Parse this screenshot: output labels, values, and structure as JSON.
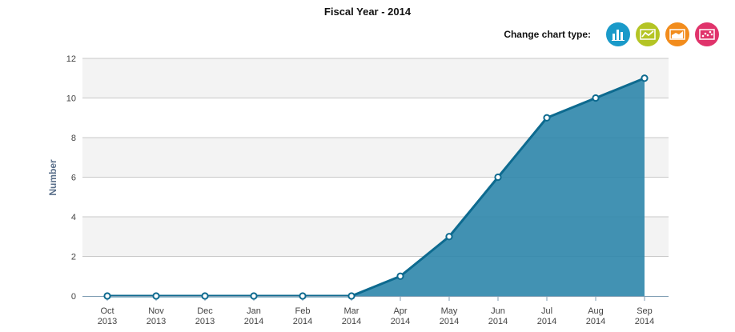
{
  "title": "Fiscal Year - 2014",
  "chart_type_selector": {
    "label": "Change chart type:",
    "buttons": [
      {
        "name": "bar",
        "icon": "bar-chart-icon",
        "color": "#1a9ac9"
      },
      {
        "name": "line",
        "icon": "line-chart-icon",
        "color": "#b4c424"
      },
      {
        "name": "area",
        "icon": "area-chart-icon",
        "color": "#f28c1c"
      },
      {
        "name": "scatter",
        "icon": "scatter-chart-icon",
        "color": "#e0336b"
      }
    ]
  },
  "chart_data": {
    "type": "area",
    "title": "Fiscal Year - 2014",
    "xlabel": "",
    "ylabel": "Number",
    "categories": [
      "Oct 2013",
      "Nov 2013",
      "Dec 2013",
      "Jan 2014",
      "Feb 2014",
      "Mar 2014",
      "Apr 2014",
      "May 2014",
      "Jun 2014",
      "Jul 2014",
      "Aug 2014",
      "Sep 2014"
    ],
    "values": [
      0,
      0,
      0,
      0,
      0,
      0,
      1,
      3,
      6,
      9,
      10,
      11
    ],
    "ylim": [
      0,
      12
    ],
    "yticks": [
      0,
      2,
      4,
      6,
      8,
      10,
      12
    ],
    "grid": true,
    "colors": {
      "fill": "#2e86ab",
      "line": "#0d6a8f",
      "band": "#f3f3f3",
      "grid": "#c8c8c8"
    }
  }
}
